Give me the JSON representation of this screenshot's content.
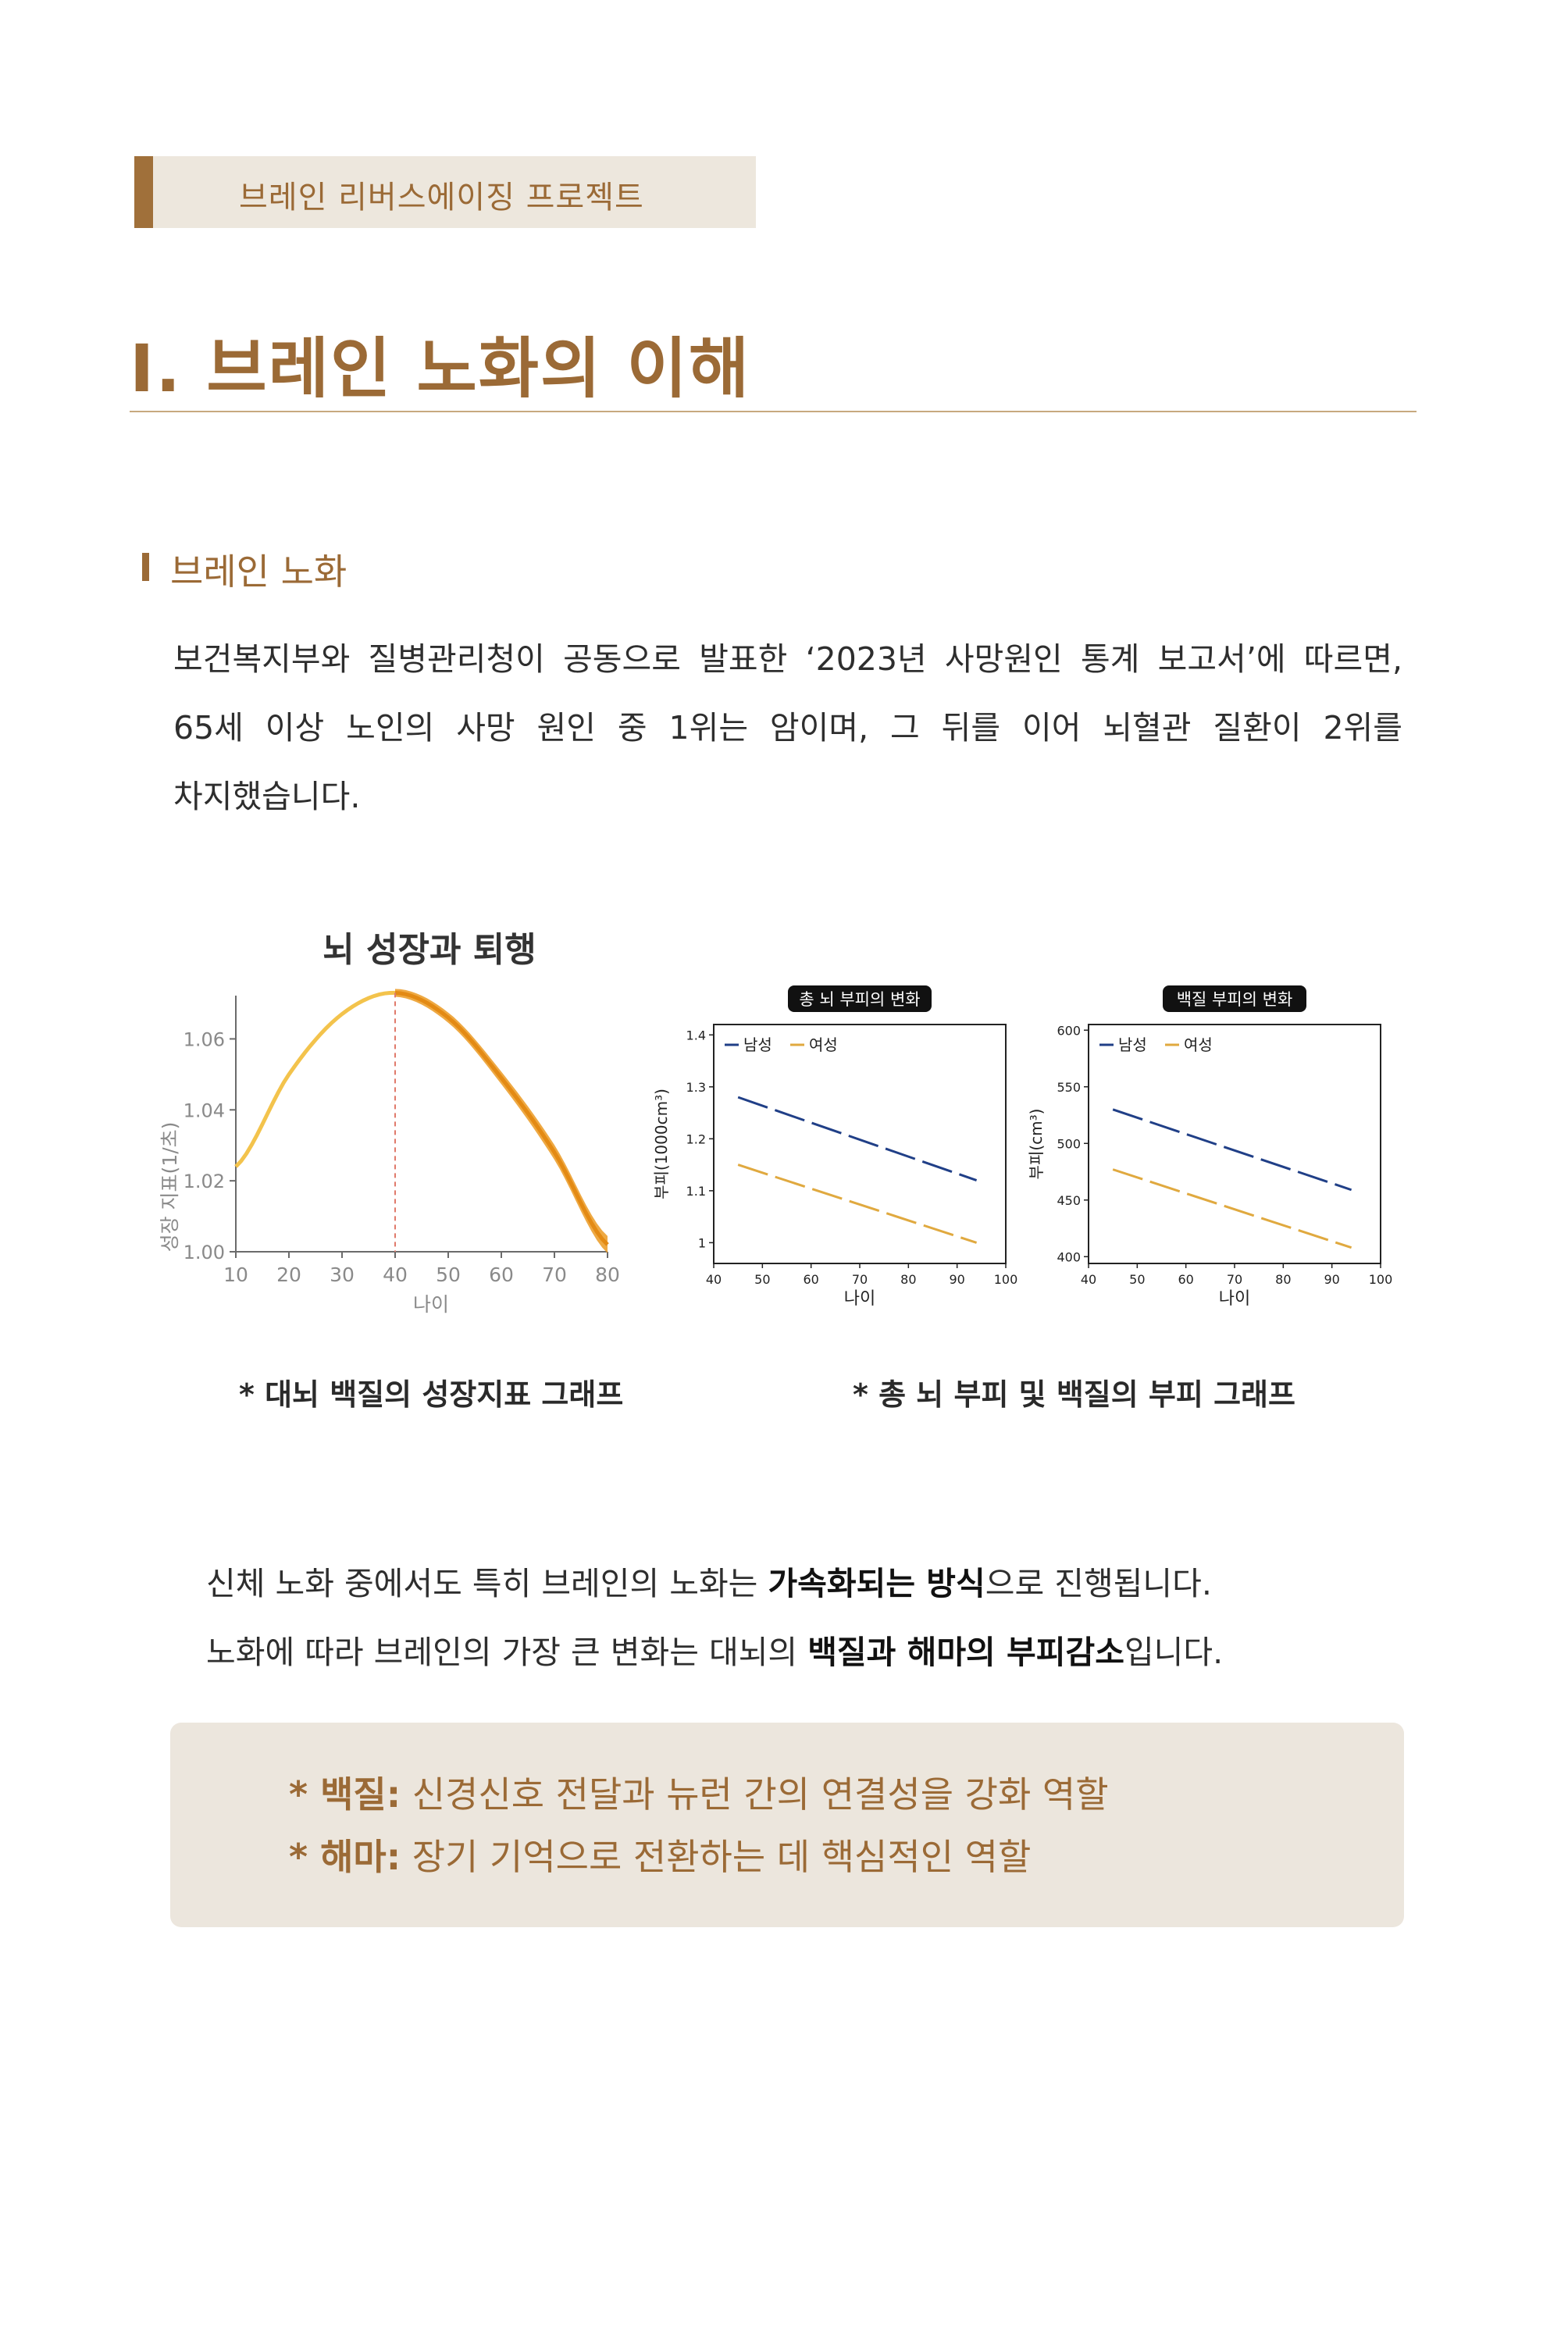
{
  "header": {
    "tab_label": "브레인 리버스에이징 프로젝트"
  },
  "title": {
    "main": "I. 브레인 노화의 이해"
  },
  "section": {
    "title": "브레인 노화"
  },
  "intro": {
    "line1": "보건복지부와 질병관리청이 공동으로 발표한 ‘2023년 사망원인 통계 보고서’에 따르면,",
    "line2": "65세 이상 노인의 사망 원인 중 1위는 암이며, 그 뒤를 이어 뇌혈관 질환이 2위를",
    "line3": "차지했습니다."
  },
  "chart_data": [
    {
      "type": "line",
      "title": "뇌 성장과 퇴행",
      "xlabel": "나이",
      "ylabel": "성장 지표(1/초)",
      "xlim": [
        10,
        80
      ],
      "ylim": [
        1.0,
        1.07
      ],
      "x_ticks": [
        "10",
        "20",
        "30",
        "40",
        "50",
        "60",
        "70",
        "80"
      ],
      "y_ticks": [
        "1.00",
        "1.02",
        "1.04",
        "1.06"
      ],
      "peak_age": 40,
      "series": [
        {
          "x": [
            10,
            20,
            30,
            40,
            50,
            60,
            70,
            80
          ],
          "y": [
            1.024,
            1.05,
            1.067,
            1.073,
            1.066,
            1.049,
            1.028,
            1.002
          ]
        }
      ],
      "colors": {
        "curve": "#f3c34c",
        "band": "#eb9a22",
        "peak_line": "#e07a6b"
      }
    },
    {
      "type": "line",
      "title": "총 뇌 부피의 변화",
      "xlabel": "나이",
      "ylabel": "부피(1000cm³)",
      "xlim": [
        40,
        100
      ],
      "ylim": [
        0.96,
        1.42
      ],
      "x_ticks": [
        "40",
        "50",
        "60",
        "70",
        "80",
        "90",
        "100"
      ],
      "y_ticks": [
        "1",
        "1.1",
        "1.2",
        "1.3",
        "1.4"
      ],
      "legend": [
        "남성",
        "여성"
      ],
      "series": [
        {
          "name": "남성",
          "color": "#203f87",
          "x": [
            45,
            94
          ],
          "y": [
            1.28,
            1.12
          ]
        },
        {
          "name": "여성",
          "color": "#e0a93f",
          "x": [
            45,
            94
          ],
          "y": [
            1.15,
            1.0
          ]
        }
      ]
    },
    {
      "type": "line",
      "title": "백질 부피의 변화",
      "xlabel": "나이",
      "ylabel": "부피(cm³)",
      "xlim": [
        40,
        100
      ],
      "ylim": [
        394,
        605
      ],
      "x_ticks": [
        "40",
        "50",
        "60",
        "70",
        "80",
        "90",
        "100"
      ],
      "y_ticks": [
        "400",
        "450",
        "500",
        "550",
        "600"
      ],
      "legend": [
        "남성",
        "여성"
      ],
      "series": [
        {
          "name": "남성",
          "color": "#203f87",
          "x": [
            45,
            94
          ],
          "y": [
            530,
            459
          ]
        },
        {
          "name": "여성",
          "color": "#e0a93f",
          "x": [
            45,
            94
          ],
          "y": [
            477,
            408
          ]
        }
      ]
    }
  ],
  "captions": {
    "left": "* 대뇌 백질의 성장지표 그래프",
    "right": "* 총 뇌 부피 및 백질의 부피 그래프"
  },
  "body": {
    "l1_pre": "신체 노화 중에서도 특히 브레인의 노화는 ",
    "l1_bold": "가속화되는 방식",
    "l1_post": "으로 진행됩니다.",
    "l2_pre": "노화에 따라 브레인의 가장 큰 변화는 대뇌의 ",
    "l2_bold": "백질과 해마의 부피감소",
    "l2_post": "입니다."
  },
  "notes": {
    "n1_term": "* 백질:",
    "n1_desc": " 신경신호 전달과 뉴런 간의 연결성을 강화 역할",
    "n2_term": "* 해마:",
    "n2_desc": " 장기 기억으로 전환하는 데 핵심적인 역할"
  }
}
